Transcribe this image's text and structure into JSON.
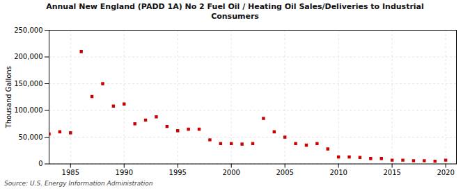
{
  "chart_data": {
    "type": "scatter",
    "title": "Annual New England (PADD 1A) No 2 Fuel Oil / Heating Oil Sales/Deliveries to Industrial\nConsumers",
    "ylabel": "Thousand Gallons",
    "source": "Source: U.S. Energy Information Administration",
    "x": [
      1983,
      1984,
      1985,
      1986,
      1987,
      1988,
      1989,
      1990,
      1991,
      1992,
      1993,
      1994,
      1995,
      1996,
      1997,
      1998,
      1999,
      2000,
      2001,
      2002,
      2003,
      2004,
      2005,
      2006,
      2007,
      2008,
      2009,
      2010,
      2011,
      2012,
      2013,
      2014,
      2015,
      2016,
      2017,
      2018,
      2019,
      2020
    ],
    "values": [
      56000,
      60000,
      58000,
      210000,
      126000,
      150000,
      108000,
      112000,
      75000,
      82000,
      88000,
      70000,
      62000,
      65000,
      65000,
      45000,
      38000,
      38000,
      37000,
      38000,
      85000,
      60000,
      50000,
      38000,
      35000,
      38000,
      28000,
      13000,
      13000,
      12000,
      10000,
      10000,
      7000,
      7000,
      6000,
      6000,
      5000,
      7000
    ],
    "color": "#cc0000",
    "marker": "square",
    "xlim": [
      1983,
      2021
    ],
    "xticks": [
      1985,
      1990,
      1995,
      2000,
      2005,
      2010,
      2015,
      2020
    ],
    "ylim": [
      0,
      250000
    ],
    "yticks": [
      0,
      {
        "value": 50000,
        "label": "50,000"
      },
      {
        "value": 100000,
        "label": "100,000"
      },
      {
        "value": 150000,
        "label": "150,000"
      },
      {
        "value": 200000,
        "label": "200,000"
      },
      {
        "value": 250000,
        "label": "250,000"
      }
    ],
    "grid": true
  }
}
